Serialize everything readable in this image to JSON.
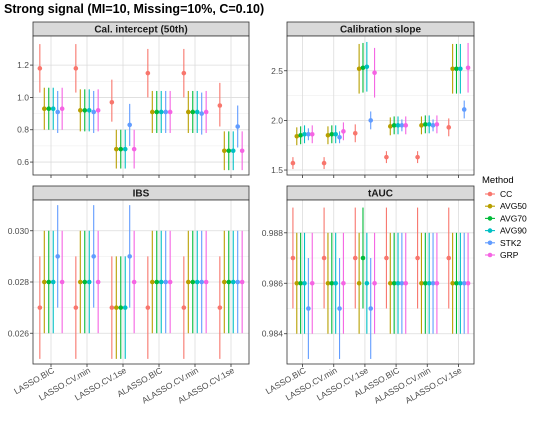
{
  "title": "Strong signal (MI=10, Missing=10%, C=0.10)",
  "legend": {
    "title": "Method",
    "position": "right"
  },
  "chart_data": {
    "type": "scatter",
    "subtype": "point-range (error bars) faceted 2x2",
    "categories": [
      "LASSO.BIC",
      "LASSO.CV.min",
      "LASSO.CV.1se",
      "ALASSO.BIC",
      "ALASSO.CV.min",
      "ALASSO.CV.1se"
    ],
    "methods": [
      "CC",
      "AVG50",
      "AVG70",
      "AVG90",
      "STK2",
      "GRP"
    ],
    "colors": {
      "CC": "#F8766D",
      "AVG50": "#B79F00",
      "AVG70": "#00BA38",
      "AVG90": "#00BFC4",
      "STK2": "#619CFF",
      "GRP": "#F564E3"
    },
    "grid": true,
    "panels": [
      {
        "title": "Cal. intercept (50th)",
        "ylim": [
          0.52,
          1.38
        ],
        "yticks": [
          0.6,
          0.8,
          1.0,
          1.2
        ],
        "ytick_labels": [
          "0.6",
          "0.8",
          "1.0",
          "1.2"
        ],
        "series": [
          {
            "name": "CC",
            "mean": [
              1.18,
              1.18,
              0.97,
              1.15,
              1.15,
              0.95
            ],
            "low": [
              1.03,
              1.03,
              0.85,
              1.0,
              1.0,
              0.82
            ],
            "high": [
              1.33,
              1.33,
              1.11,
              1.3,
              1.3,
              1.09
            ]
          },
          {
            "name": "AVG50",
            "mean": [
              0.93,
              0.92,
              0.68,
              0.91,
              0.91,
              0.67
            ],
            "low": [
              0.8,
              0.79,
              0.56,
              0.78,
              0.78,
              0.55
            ],
            "high": [
              1.06,
              1.05,
              0.8,
              1.04,
              1.04,
              0.79
            ]
          },
          {
            "name": "AVG70",
            "mean": [
              0.93,
              0.92,
              0.68,
              0.91,
              0.91,
              0.67
            ],
            "low": [
              0.8,
              0.79,
              0.56,
              0.78,
              0.78,
              0.55
            ],
            "high": [
              1.06,
              1.05,
              0.8,
              1.04,
              1.04,
              0.79
            ]
          },
          {
            "name": "AVG90",
            "mean": [
              0.93,
              0.92,
              0.68,
              0.91,
              0.91,
              0.67
            ],
            "low": [
              0.8,
              0.79,
              0.56,
              0.78,
              0.78,
              0.55
            ],
            "high": [
              1.06,
              1.05,
              0.8,
              1.04,
              1.04,
              0.79
            ]
          },
          {
            "name": "STK2",
            "mean": [
              0.91,
              0.91,
              0.83,
              0.91,
              0.9,
              0.82
            ],
            "low": [
              0.78,
              0.78,
              0.7,
              0.78,
              0.77,
              0.69
            ],
            "high": [
              1.04,
              1.04,
              0.96,
              1.04,
              1.03,
              0.95
            ]
          },
          {
            "name": "GRP",
            "mean": [
              0.93,
              0.92,
              0.68,
              0.91,
              0.91,
              0.67
            ],
            "low": [
              0.8,
              0.79,
              0.56,
              0.78,
              0.78,
              0.55
            ],
            "high": [
              1.06,
              1.05,
              0.8,
              1.04,
              1.04,
              0.79
            ]
          }
        ]
      },
      {
        "title": "Calibration slope",
        "ylim": [
          1.45,
          2.85
        ],
        "yticks": [
          1.5,
          2.0,
          2.5
        ],
        "ytick_labels": [
          "1.5",
          "2.0",
          "2.5"
        ],
        "series": [
          {
            "name": "CC",
            "mean": [
              1.57,
              1.57,
              1.87,
              1.63,
              1.63,
              1.93
            ],
            "low": [
              1.51,
              1.51,
              1.78,
              1.57,
              1.57,
              1.84
            ],
            "high": [
              1.63,
              1.63,
              1.96,
              1.69,
              1.69,
              2.02
            ]
          },
          {
            "name": "AVG50",
            "mean": [
              1.84,
              1.85,
              2.52,
              1.94,
              1.95,
              2.52
            ],
            "low": [
              1.75,
              1.76,
              2.27,
              1.85,
              1.86,
              2.27
            ],
            "high": [
              1.93,
              1.94,
              2.77,
              2.03,
              2.04,
              2.77
            ]
          },
          {
            "name": "AVG70",
            "mean": [
              1.85,
              1.86,
              2.53,
              1.95,
              1.96,
              2.52
            ],
            "low": [
              1.76,
              1.77,
              2.28,
              1.86,
              1.87,
              2.27
            ],
            "high": [
              1.94,
              1.95,
              2.78,
              2.04,
              2.05,
              2.77
            ]
          },
          {
            "name": "AVG90",
            "mean": [
              1.86,
              1.86,
              2.54,
              1.95,
              1.96,
              2.52
            ],
            "low": [
              1.77,
              1.77,
              2.29,
              1.86,
              1.87,
              2.27
            ],
            "high": [
              1.95,
              1.95,
              2.79,
              2.04,
              2.05,
              2.77
            ]
          },
          {
            "name": "STK2",
            "mean": [
              1.86,
              1.83,
              2.0,
              1.95,
              1.95,
              2.11
            ],
            "low": [
              1.8,
              1.77,
              1.91,
              1.89,
              1.89,
              2.02
            ],
            "high": [
              1.92,
              1.89,
              2.09,
              2.01,
              2.01,
              2.2
            ]
          },
          {
            "name": "GRP",
            "mean": [
              1.86,
              1.89,
              2.48,
              1.95,
              1.96,
              2.53
            ],
            "low": [
              1.77,
              1.8,
              2.23,
              1.86,
              1.87,
              2.28
            ],
            "high": [
              1.95,
              1.98,
              2.73,
              2.04,
              2.05,
              2.78
            ]
          }
        ]
      },
      {
        "title": "IBS",
        "ylim": [
          0.0248,
          0.0312
        ],
        "yticks": [
          0.026,
          0.028,
          0.03
        ],
        "ytick_labels": [
          "0.026",
          "0.028",
          "0.030"
        ],
        "series": [
          {
            "name": "CC",
            "mean": [
              0.027,
              0.027,
              0.027,
              0.027,
              0.027,
              0.027
            ],
            "low": [
              0.025,
              0.025,
              0.025,
              0.025,
              0.025,
              0.025
            ],
            "high": [
              0.029,
              0.029,
              0.029,
              0.029,
              0.029,
              0.029
            ]
          },
          {
            "name": "AVG50",
            "mean": [
              0.028,
              0.028,
              0.027,
              0.028,
              0.028,
              0.028
            ],
            "low": [
              0.026,
              0.026,
              0.025,
              0.026,
              0.026,
              0.026
            ],
            "high": [
              0.03,
              0.03,
              0.029,
              0.03,
              0.03,
              0.03
            ]
          },
          {
            "name": "AVG70",
            "mean": [
              0.028,
              0.028,
              0.027,
              0.028,
              0.028,
              0.028
            ],
            "low": [
              0.026,
              0.026,
              0.025,
              0.026,
              0.026,
              0.026
            ],
            "high": [
              0.03,
              0.03,
              0.029,
              0.03,
              0.03,
              0.03
            ]
          },
          {
            "name": "AVG90",
            "mean": [
              0.028,
              0.028,
              0.027,
              0.028,
              0.028,
              0.028
            ],
            "low": [
              0.026,
              0.026,
              0.025,
              0.026,
              0.026,
              0.026
            ],
            "high": [
              0.03,
              0.03,
              0.029,
              0.03,
              0.03,
              0.03
            ]
          },
          {
            "name": "STK2",
            "mean": [
              0.029,
              0.029,
              0.029,
              0.028,
              0.028,
              0.028
            ],
            "low": [
              0.027,
              0.027,
              0.027,
              0.026,
              0.026,
              0.026
            ],
            "high": [
              0.031,
              0.031,
              0.031,
              0.03,
              0.03,
              0.03
            ]
          },
          {
            "name": "GRP",
            "mean": [
              0.028,
              0.028,
              0.028,
              0.028,
              0.028,
              0.028
            ],
            "low": [
              0.026,
              0.026,
              0.026,
              0.026,
              0.026,
              0.026
            ],
            "high": [
              0.03,
              0.03,
              0.03,
              0.03,
              0.03,
              0.03
            ]
          }
        ]
      },
      {
        "title": "tAUC",
        "ylim": [
          0.9828,
          0.9893
        ],
        "yticks": [
          0.984,
          0.986,
          0.988
        ],
        "ytick_labels": [
          "0.984",
          "0.986",
          "0.988"
        ],
        "series": [
          {
            "name": "CC",
            "mean": [
              0.987,
              0.987,
              0.987,
              0.987,
              0.987,
              0.987
            ],
            "low": [
              0.985,
              0.985,
              0.985,
              0.985,
              0.985,
              0.985
            ],
            "high": [
              0.989,
              0.989,
              0.989,
              0.989,
              0.989,
              0.989
            ]
          },
          {
            "name": "AVG50",
            "mean": [
              0.986,
              0.986,
              0.986,
              0.986,
              0.986,
              0.986
            ],
            "low": [
              0.984,
              0.984,
              0.984,
              0.984,
              0.984,
              0.984
            ],
            "high": [
              0.988,
              0.988,
              0.988,
              0.988,
              0.988,
              0.988
            ]
          },
          {
            "name": "AVG70",
            "mean": [
              0.986,
              0.986,
              0.987,
              0.986,
              0.986,
              0.986
            ],
            "low": [
              0.984,
              0.984,
              0.985,
              0.984,
              0.984,
              0.984
            ],
            "high": [
              0.988,
              0.988,
              0.989,
              0.988,
              0.988,
              0.988
            ]
          },
          {
            "name": "AVG90",
            "mean": [
              0.986,
              0.986,
              0.986,
              0.986,
              0.986,
              0.986
            ],
            "low": [
              0.984,
              0.984,
              0.984,
              0.984,
              0.984,
              0.984
            ],
            "high": [
              0.988,
              0.988,
              0.988,
              0.988,
              0.988,
              0.988
            ]
          },
          {
            "name": "STK2",
            "mean": [
              0.985,
              0.985,
              0.985,
              0.986,
              0.986,
              0.986
            ],
            "low": [
              0.983,
              0.983,
              0.983,
              0.984,
              0.984,
              0.984
            ],
            "high": [
              0.987,
              0.987,
              0.987,
              0.988,
              0.988,
              0.988
            ]
          },
          {
            "name": "GRP",
            "mean": [
              0.986,
              0.986,
              0.986,
              0.986,
              0.986,
              0.986
            ],
            "low": [
              0.984,
              0.984,
              0.984,
              0.984,
              0.984,
              0.984
            ],
            "high": [
              0.988,
              0.988,
              0.988,
              0.988,
              0.988,
              0.988
            ]
          }
        ]
      }
    ]
  }
}
